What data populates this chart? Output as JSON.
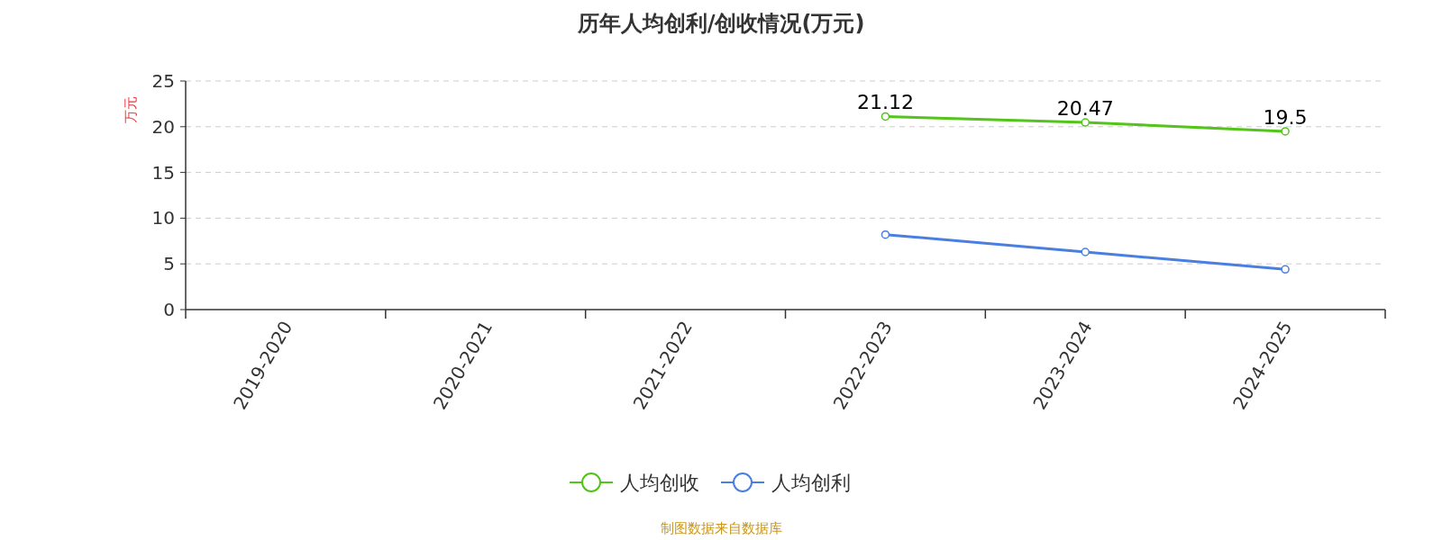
{
  "chart_data": {
    "type": "line",
    "title": "历年人均创利/创收情况(万元)",
    "ylabel": "万元",
    "categories": [
      "2019-2020",
      "2020-2021",
      "2021-2022",
      "2022-2023",
      "2023-2024",
      "2024-2025"
    ],
    "series": [
      {
        "name": "人均创收",
        "color": "#52c41a",
        "values": [
          null,
          null,
          null,
          21.12,
          20.47,
          19.5
        ],
        "value_labels": [
          null,
          null,
          null,
          "21.12",
          "20.47",
          "19.5"
        ]
      },
      {
        "name": "人均创利",
        "color": "#4a7fe0",
        "values": [
          null,
          null,
          null,
          8.2,
          6.3,
          4.4
        ]
      }
    ],
    "ylim": [
      0,
      25
    ],
    "yticks": [
      0,
      5,
      10,
      15,
      20,
      25
    ],
    "grid": "y",
    "legend": "bottom",
    "marker": "circle",
    "line_style": "solid",
    "annotations": [
      "制图数据来自数据库"
    ]
  }
}
